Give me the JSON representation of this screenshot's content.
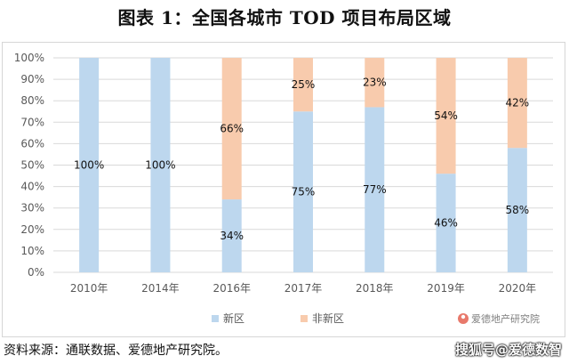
{
  "title": "图表 1：全国各城市 TOD 项目布局区域",
  "source": "资料来源：通联数据、爱德地产研究院。",
  "watermark": {
    "in_chart": "爱德地产研究院",
    "corner": "搜狐号@爱德数智"
  },
  "colors": {
    "new_district": "#bdd7ee",
    "non_new_district": "#f8cbad",
    "grid": "#d9d9d9"
  },
  "chart_data": {
    "type": "bar",
    "stacked": true,
    "categories": [
      "2010年",
      "2014年",
      "2016年",
      "2017年",
      "2018年",
      "2019年",
      "2020年"
    ],
    "series": [
      {
        "name": "新区",
        "values": [
          100,
          100,
          34,
          75,
          77,
          46,
          58
        ],
        "labels": [
          "100%",
          "100%",
          "34%",
          "75%",
          "77%",
          "46%",
          "58%"
        ]
      },
      {
        "name": "非新区",
        "values": [
          0,
          0,
          66,
          25,
          23,
          54,
          42
        ],
        "labels": [
          "",
          "",
          "66%",
          "25%",
          "23%",
          "54%",
          "42%"
        ]
      }
    ],
    "yticks": [
      "0%",
      "10%",
      "20%",
      "30%",
      "40%",
      "50%",
      "60%",
      "70%",
      "80%",
      "90%",
      "100%"
    ],
    "ylim": [
      0,
      100
    ],
    "grid": true,
    "legend_position": "bottom"
  }
}
